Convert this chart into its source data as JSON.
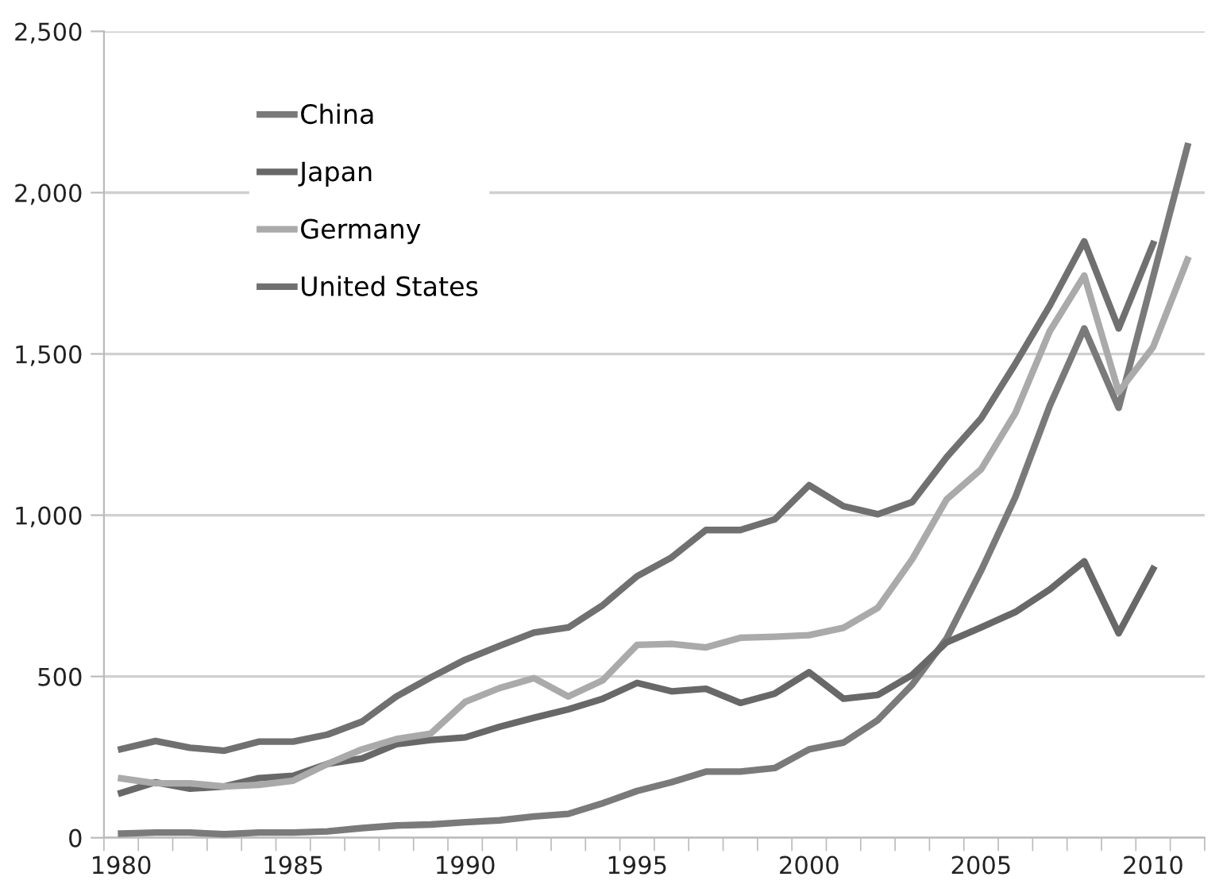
{
  "chart_data": {
    "type": "line",
    "categories": [
      "1980",
      null,
      null,
      null,
      null,
      "1985",
      null,
      null,
      null,
      null,
      "1990",
      null,
      null,
      null,
      null,
      "1995",
      null,
      null,
      null,
      null,
      "2000",
      null,
      null,
      null,
      null,
      "2005",
      null,
      null,
      null,
      null,
      "2010",
      null
    ],
    "series": [
      {
        "name": "China",
        "color": "#7a7a7a",
        "values": [
          13,
          16,
          16,
          11,
          16,
          16,
          20,
          30,
          38,
          41,
          48,
          54,
          66,
          74,
          107,
          145,
          172,
          205,
          205,
          216,
          274,
          295,
          365,
          475,
          618,
          828,
          1057,
          1340,
          1579,
          1333,
          1738,
          2144
        ]
      },
      {
        "name": "Japan",
        "color": "#686868",
        "values": [
          139,
          172,
          152,
          159,
          185,
          192,
          229,
          246,
          290,
          303,
          311,
          344,
          372,
          398,
          431,
          480,
          454,
          462,
          418,
          447,
          513,
          431,
          443,
          505,
          606,
          652,
          700,
          770,
          857,
          634,
          833,
          null
        ]
      },
      {
        "name": "Germany",
        "color": "#aaaaaa",
        "values": [
          184,
          169,
          169,
          159,
          164,
          177,
          229,
          274,
          306,
          323,
          421,
          464,
          495,
          438,
          488,
          598,
          601,
          590,
          620,
          623,
          628,
          651,
          713,
          864,
          1049,
          1142,
          1317,
          1571,
          1743,
          1382,
          1521,
          1792
        ]
      },
      {
        "name": "United States",
        "color": "#707070",
        "values": [
          275,
          300,
          279,
          270,
          298,
          298,
          320,
          360,
          438,
          497,
          552,
          595,
          636,
          652,
          721,
          811,
          869,
          954,
          954,
          987,
          1093,
          1028,
          1003,
          1041,
          1180,
          1300,
          1470,
          1650,
          1849,
          1579,
          1841,
          null
        ]
      }
    ],
    "ylim": [
      0,
      2500
    ],
    "yticks": [
      {
        "value": 0,
        "label": "0"
      },
      {
        "value": 500,
        "label": "500"
      },
      {
        "value": 1000,
        "label": "1,000"
      },
      {
        "value": 1500,
        "label": "1,500"
      },
      {
        "value": 2000,
        "label": "2,000"
      },
      {
        "value": 2500,
        "label": "2,500"
      }
    ],
    "grid": "y",
    "legend": "top left",
    "marker": "none",
    "line_style": "solid"
  }
}
